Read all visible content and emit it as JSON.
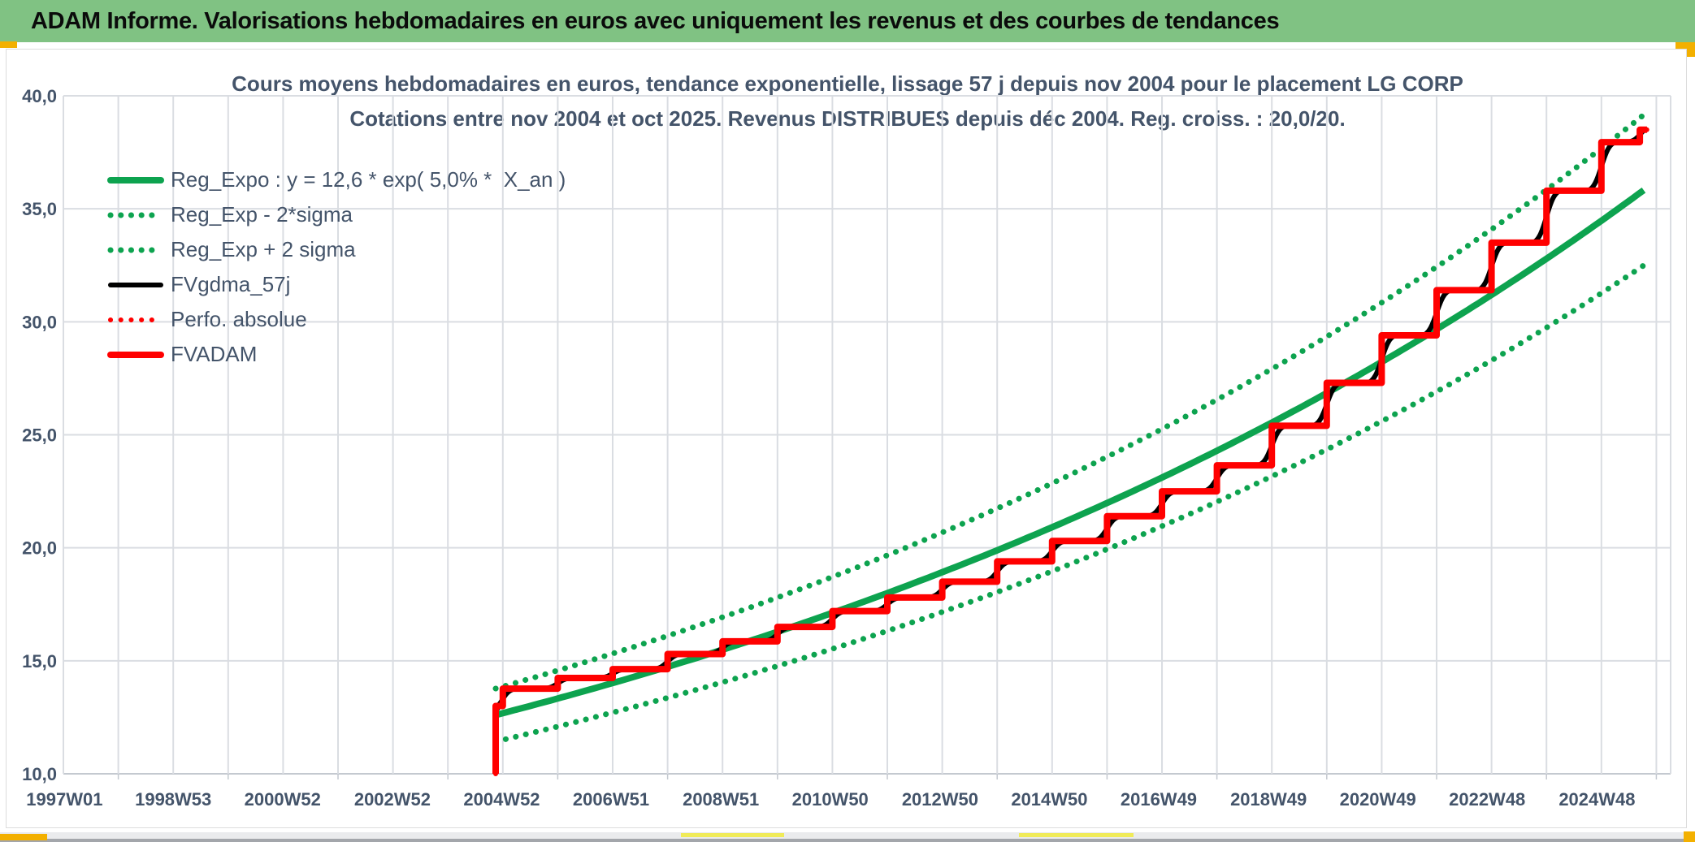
{
  "header": {
    "title": "ADAM Informe. Valorisations hebdomadaires en euros avec uniquement les revenus et des courbes de tendances"
  },
  "colors": {
    "green": "#0DA34F",
    "red": "#FF0000",
    "black": "#000000",
    "header_bg": "#80C283",
    "gold": "#F3B000",
    "pale_yellow": "#F0EB59",
    "grid": "#DADDE2",
    "axis_line": "#C4C9D0",
    "text": "#44546A"
  },
  "chart_data": {
    "type": "line",
    "title_line1": "Cours moyens hebdomadaires en euros, tendance exponentielle, lissage 57 j depuis nov 2004 pour le placement LG CORP",
    "title_line2": "Cotations entre nov 2004 et oct 2025. Revenus DISTRIBUES depuis déc 2004. Reg. croiss. : 20,0/20.",
    "x_domain_years": [
      1997.0,
      2026.26
    ],
    "x_gridline_every_years": 1,
    "y_axis": {
      "min": 10,
      "max": 40,
      "step": 5,
      "tick_labels": [
        "10,0",
        "15,0",
        "20,0",
        "25,0",
        "30,0",
        "35,0",
        "40,0"
      ]
    },
    "x_ticks": [
      {
        "label": "1997W01",
        "year": 1997.02
      },
      {
        "label": "1998W53",
        "year": 1999.0
      },
      {
        "label": "2000W52",
        "year": 2000.99
      },
      {
        "label": "2002W52",
        "year": 2002.99
      },
      {
        "label": "2004W52",
        "year": 2004.98
      },
      {
        "label": "2006W51",
        "year": 2006.97
      },
      {
        "label": "2008W51",
        "year": 2008.97
      },
      {
        "label": "2010W50",
        "year": 2010.96
      },
      {
        "label": "2012W50",
        "year": 2012.96
      },
      {
        "label": "2014W50",
        "year": 2014.95
      },
      {
        "label": "2016W49",
        "year": 2016.94
      },
      {
        "label": "2018W49",
        "year": 2018.94
      },
      {
        "label": "2020W49",
        "year": 2020.93
      },
      {
        "label": "2022W48",
        "year": 2022.92
      },
      {
        "label": "2024W48",
        "year": 2024.92
      }
    ],
    "trend": {
      "base": 12.6,
      "rate": 0.05,
      "t_start": 2004.87,
      "t_end": 2025.83,
      "sigma_up_factor": 1.093,
      "sigma_down_factor": 0.907
    },
    "fvadam_start": {
      "year": 2004.87,
      "from_value": 10.0,
      "to_value": 13.0
    },
    "fvadam_steps": [
      [
        2004.87,
        13.0
      ],
      [
        2005.0,
        13.77
      ],
      [
        2006.0,
        14.24
      ],
      [
        2007.0,
        14.63
      ],
      [
        2008.0,
        15.3
      ],
      [
        2009.0,
        15.86
      ],
      [
        2010.0,
        16.5
      ],
      [
        2011.0,
        17.2
      ],
      [
        2012.0,
        17.8
      ],
      [
        2013.0,
        18.5
      ],
      [
        2014.0,
        19.4
      ],
      [
        2015.0,
        20.3
      ],
      [
        2016.0,
        21.4
      ],
      [
        2017.0,
        22.5
      ],
      [
        2018.0,
        23.65
      ],
      [
        2019.0,
        25.4
      ],
      [
        2020.0,
        27.3
      ],
      [
        2021.0,
        29.4
      ],
      [
        2022.0,
        31.4
      ],
      [
        2023.0,
        33.5
      ],
      [
        2024.0,
        35.8
      ],
      [
        2025.0,
        37.95
      ],
      [
        2025.7,
        38.5
      ]
    ],
    "fvadam_end_year": 2025.83,
    "smoothed_start_value": 12.75,
    "series": [
      {
        "role": "trend_center",
        "label": "Reg_Expo : y = 12,6 * exp( 5,0% *  X_an )",
        "color_key": "green",
        "line": "solid",
        "width": 8
      },
      {
        "role": "trend_lower",
        "label": "Reg_Exp - 2*sigma",
        "color_key": "green",
        "line": "dotted",
        "width": 7
      },
      {
        "role": "trend_upper",
        "label": "Reg_Exp + 2 sigma",
        "color_key": "green",
        "line": "dotted",
        "width": 7
      },
      {
        "role": "smoothed",
        "label": "FVgdma_57j",
        "color_key": "black",
        "line": "solid",
        "width": 6
      },
      {
        "role": "perf_abs",
        "label": "Perfo. absolue",
        "color_key": "red",
        "line": "dotted",
        "width": 6
      },
      {
        "role": "fvadam",
        "label": "FVADAM",
        "color_key": "red",
        "line": "solid",
        "width": 8
      }
    ]
  }
}
